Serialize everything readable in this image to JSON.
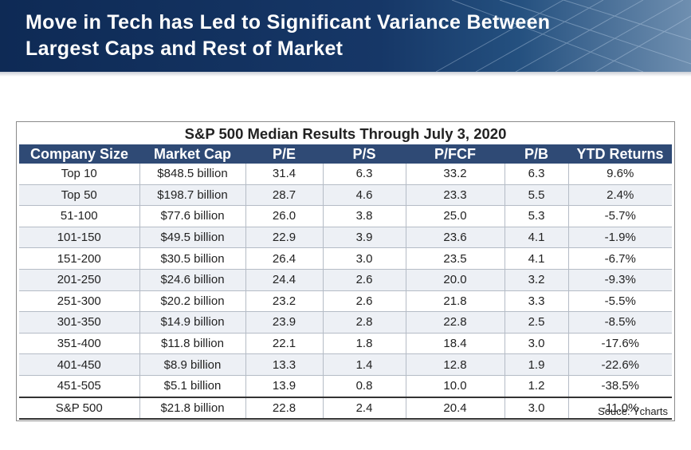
{
  "banner": {
    "title_line1": "Move in Tech has Led to Significant Variance Between",
    "title_line2": "Largest Caps and Rest of Market"
  },
  "table": {
    "title": "S&P 500 Median Results Through July 3, 2020",
    "headers": [
      "Company Size",
      "Market Cap",
      "P/E",
      "P/S",
      "P/FCF",
      "P/B",
      "YTD Returns"
    ],
    "rows": [
      [
        "Top 10",
        "$848.5 billion",
        "31.4",
        "6.3",
        "33.2",
        "6.3",
        "9.6%"
      ],
      [
        "Top 50",
        "$198.7 billion",
        "28.7",
        "4.6",
        "23.3",
        "5.5",
        "2.4%"
      ],
      [
        "51-100",
        "$77.6 billion",
        "26.0",
        "3.8",
        "25.0",
        "5.3",
        "-5.7%"
      ],
      [
        "101-150",
        "$49.5 billion",
        "22.9",
        "3.9",
        "23.6",
        "4.1",
        "-1.9%"
      ],
      [
        "151-200",
        "$30.5 billion",
        "26.4",
        "3.0",
        "23.5",
        "4.1",
        "-6.7%"
      ],
      [
        "201-250",
        "$24.6 billion",
        "24.4",
        "2.6",
        "20.0",
        "3.2",
        "-9.3%"
      ],
      [
        "251-300",
        "$20.2 billion",
        "23.2",
        "2.6",
        "21.8",
        "3.3",
        "-5.5%"
      ],
      [
        "301-350",
        "$14.9 billion",
        "23.9",
        "2.8",
        "22.8",
        "2.5",
        "-8.5%"
      ],
      [
        "351-400",
        "$11.8 billion",
        "22.1",
        "1.8",
        "18.4",
        "3.0",
        "-17.6%"
      ],
      [
        "401-450",
        "$8.9 billion",
        "13.3",
        "1.4",
        "12.8",
        "1.9",
        "-22.6%"
      ],
      [
        "451-505",
        "$5.1 billion",
        "13.9",
        "0.8",
        "10.0",
        "1.2",
        "-38.5%"
      ]
    ],
    "total": [
      "S&P 500",
      "$21.8 billion",
      "22.8",
      "2.4",
      "20.4",
      "3.0",
      "-11.0%"
    ],
    "source": "Souce: Ycharts"
  }
}
